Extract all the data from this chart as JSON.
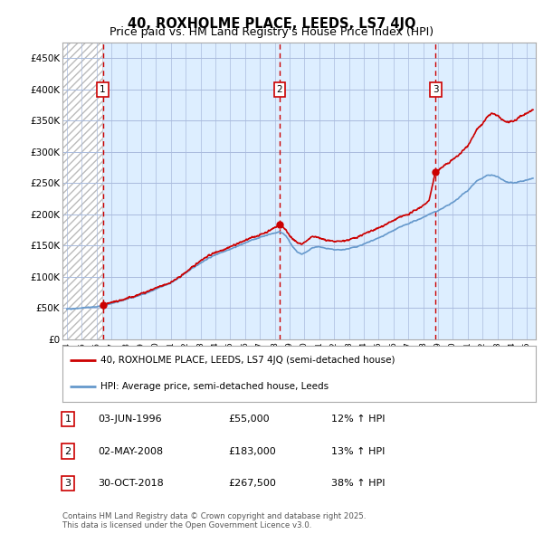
{
  "title": "40, ROXHOLME PLACE, LEEDS, LS7 4JQ",
  "subtitle": "Price paid vs. HM Land Registry's House Price Index (HPI)",
  "ylim": [
    0,
    475000
  ],
  "yticks": [
    0,
    50000,
    100000,
    150000,
    200000,
    250000,
    300000,
    350000,
    400000,
    450000
  ],
  "ytick_labels": [
    "£0",
    "£50K",
    "£100K",
    "£150K",
    "£200K",
    "£250K",
    "£300K",
    "£350K",
    "£400K",
    "£450K"
  ],
  "xlim_start": 1993.7,
  "xlim_end": 2025.6,
  "xticks": [
    1994,
    1995,
    1996,
    1997,
    1998,
    1999,
    2000,
    2001,
    2002,
    2003,
    2004,
    2005,
    2006,
    2007,
    2008,
    2009,
    2010,
    2011,
    2012,
    2013,
    2014,
    2015,
    2016,
    2017,
    2018,
    2019,
    2020,
    2021,
    2022,
    2023,
    2024,
    2025
  ],
  "hatch_end_year": 1996.4,
  "sales": [
    {
      "year": 1996.42,
      "price": 55000,
      "label": "1"
    },
    {
      "year": 2008.33,
      "price": 183000,
      "label": "2"
    },
    {
      "year": 2018.83,
      "price": 267500,
      "label": "3"
    }
  ],
  "red_line_color": "#cc0000",
  "blue_line_color": "#6699cc",
  "grid_color": "#aabbdd",
  "plot_bg": "#ddeeff",
  "legend_label_red": "40, ROXHOLME PLACE, LEEDS, LS7 4JQ (semi-detached house)",
  "legend_label_blue": "HPI: Average price, semi-detached house, Leeds",
  "table_entries": [
    {
      "num": "1",
      "date": "03-JUN-1996",
      "price": "£55,000",
      "hpi": "12% ↑ HPI"
    },
    {
      "num": "2",
      "date": "02-MAY-2008",
      "price": "£183,000",
      "hpi": "13% ↑ HPI"
    },
    {
      "num": "3",
      "date": "30-OCT-2018",
      "price": "£267,500",
      "hpi": "38% ↑ HPI"
    }
  ],
  "footer": "Contains HM Land Registry data © Crown copyright and database right 2025.\nThis data is licensed under the Open Government Licence v3.0."
}
